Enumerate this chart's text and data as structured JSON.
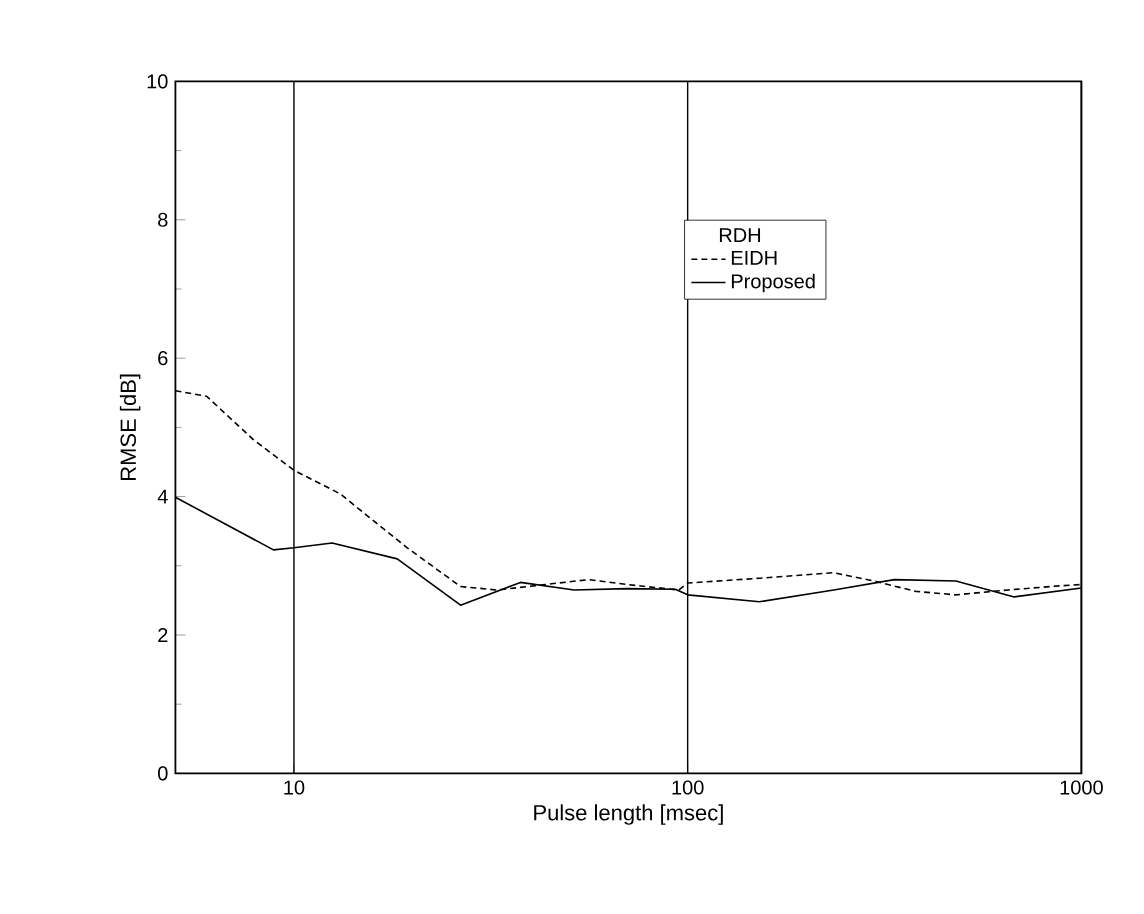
{
  "chart_data": {
    "type": "line",
    "xlabel": "Pulse length [msec]",
    "ylabel": "RMSE [dB]",
    "log": "x",
    "grid": "x",
    "legend": "top",
    "legend_title": "RDH",
    "xlim": [
      5,
      1000
    ],
    "ylim": [
      0,
      10
    ],
    "xticks": [
      10,
      100,
      1000
    ],
    "yticks": [
      0,
      2,
      4,
      6,
      8,
      10
    ],
    "series": [
      {
        "name": "EIDH",
        "color": "#000000",
        "line_style": "dashed",
        "x": [
          5,
          6,
          7.9,
          10,
          13.1,
          19.4,
          26.5,
          32.8,
          56,
          70,
          95,
          100,
          152,
          235,
          297,
          380,
          480,
          650,
          880,
          1000
        ],
        "values": [
          5.53,
          5.45,
          4.82,
          4.38,
          4.04,
          3.26,
          2.7,
          2.65,
          2.8,
          2.73,
          2.65,
          2.75,
          2.82,
          2.9,
          2.78,
          2.63,
          2.58,
          2.65,
          2.71,
          2.73
        ]
      },
      {
        "name": "Proposed",
        "color": "#000000",
        "line_style": "solid",
        "x": [
          5,
          8.87,
          10,
          12.5,
          18.3,
          26.5,
          37.6,
          51.5,
          70,
          93,
          100,
          152,
          235,
          335,
          480,
          675,
          1000
        ],
        "values": [
          3.99,
          3.23,
          3.26,
          3.33,
          3.1,
          2.43,
          2.76,
          2.65,
          2.67,
          2.66,
          2.58,
          2.48,
          2.65,
          2.8,
          2.78,
          2.55,
          2.68
        ]
      }
    ]
  }
}
